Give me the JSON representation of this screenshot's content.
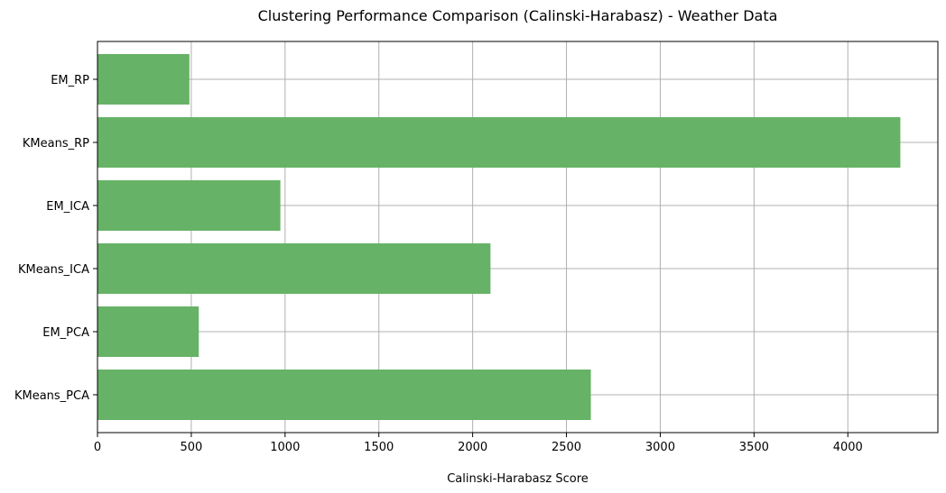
{
  "chart_data": {
    "type": "bar",
    "orientation": "horizontal",
    "title": "Clustering Performance Comparison (Calinski-Harabasz) - Weather Data",
    "xlabel": "Calinski-Harabasz Score",
    "ylabel": "",
    "categories": [
      "KMeans_PCA",
      "EM_PCA",
      "KMeans_ICA",
      "EM_ICA",
      "KMeans_RP",
      "EM_RP"
    ],
    "values": [
      2630,
      540,
      2095,
      975,
      4280,
      490
    ],
    "xlim": [
      0,
      4480
    ],
    "xticks": [
      0,
      500,
      1000,
      1500,
      2000,
      2500,
      3000,
      3500,
      4000
    ],
    "grid": true,
    "bar_color": "#66b266"
  }
}
